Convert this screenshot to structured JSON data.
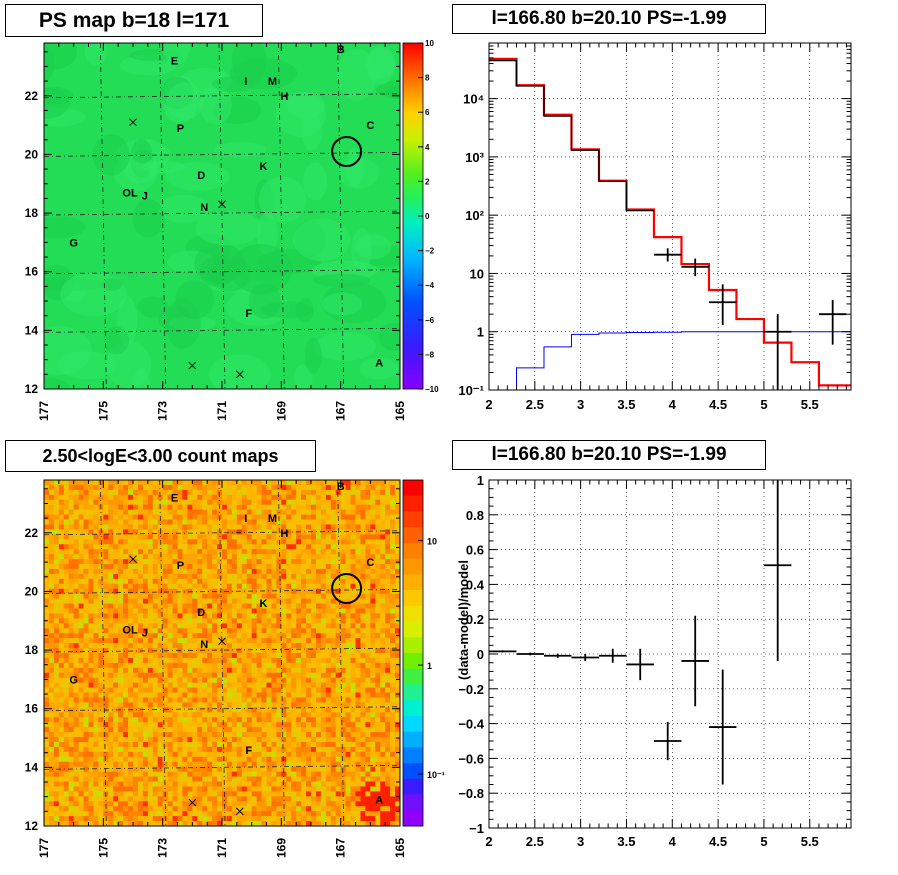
{
  "panels": {
    "ps_map_title": "PS map b=18 l=171",
    "spectrum_title": "l=166.80 b=20.10 PS=-1.99",
    "count_map_title": "2.50<logE<3.00 count maps",
    "residual_title": "l=166.80 b=20.10 PS=-1.99"
  },
  "chart_data": [
    {
      "id": "ps_map",
      "type": "heatmap",
      "title": "PS map b=18 l=171",
      "xlim": [
        177,
        165
      ],
      "ylim": [
        12,
        23.8
      ],
      "xticks": [
        "177",
        "175",
        "173",
        "171",
        "169",
        "167",
        "165"
      ],
      "yticks": [
        "12",
        "14",
        "16",
        "18",
        "20",
        "22"
      ],
      "colorbar": {
        "range": [
          -10,
          10
        ],
        "ticks": [
          "10",
          "8",
          "6",
          "4",
          "2",
          "0",
          "−2",
          "−4",
          "−6",
          "−8",
          "−10"
        ]
      },
      "grid": true,
      "background_level": 0,
      "source_labels": [
        {
          "name": "B",
          "l": 167.0,
          "b": 23.6
        },
        {
          "name": "E",
          "l": 172.6,
          "b": 23.2
        },
        {
          "name": "I",
          "l": 170.2,
          "b": 22.5
        },
        {
          "name": "M",
          "l": 169.3,
          "b": 22.5
        },
        {
          "name": "H",
          "l": 168.9,
          "b": 22.0
        },
        {
          "name": "C",
          "l": 166.0,
          "b": 21.0
        },
        {
          "name": "P",
          "l": 172.4,
          "b": 20.9
        },
        {
          "name": "K",
          "l": 169.6,
          "b": 19.6
        },
        {
          "name": "D",
          "l": 171.7,
          "b": 19.3
        },
        {
          "name": "OL",
          "l": 174.1,
          "b": 18.7
        },
        {
          "name": "J",
          "l": 173.6,
          "b": 18.6
        },
        {
          "name": "N",
          "l": 171.6,
          "b": 18.2
        },
        {
          "name": "G",
          "l": 176.0,
          "b": 17.0
        },
        {
          "name": "F",
          "l": 170.1,
          "b": 14.6
        },
        {
          "name": "A",
          "l": 165.7,
          "b": 12.9
        }
      ],
      "x_markers": [
        {
          "l": 174.0,
          "b": 21.1
        },
        {
          "l": 171.0,
          "b": 18.3
        },
        {
          "l": 172.0,
          "b": 12.8
        },
        {
          "l": 170.4,
          "b": 12.5
        }
      ],
      "circle": {
        "l": 166.8,
        "b": 20.1
      }
    },
    {
      "id": "spectrum",
      "type": "line",
      "title": "l=166.80 b=20.10 PS=-1.99",
      "xlim": [
        2.0,
        5.95
      ],
      "ylim": [
        0.1,
        90000
      ],
      "yscale": "log",
      "xticks": [
        "2",
        "2.5",
        "3",
        "3.5",
        "4",
        "4.5",
        "5",
        "5.5"
      ],
      "yticks": [
        "10⁻¹",
        "1",
        "10",
        "10²",
        "10³",
        "10⁴"
      ],
      "grid": true,
      "bin_edges": [
        2.0,
        2.3,
        2.6,
        2.9,
        3.2,
        3.5,
        3.8,
        4.1,
        4.4,
        4.7,
        5.0,
        5.3,
        5.6,
        5.95
      ],
      "series": [
        {
          "color": "#ff0000",
          "values": [
            48000,
            17000,
            5300,
            1350,
            390,
            125,
            42,
            14.5,
            5.2,
            1.65,
            0.65,
            0.3,
            0.12
          ]
        },
        {
          "color": "#000000",
          "values": [
            45000,
            16500,
            5000,
            1300,
            380,
            120
          ]
        },
        {
          "color": "#0000ff",
          "values": [
            0.1,
            0.24,
            0.55,
            0.9,
            0.95,
            0.97,
            0.98,
            1.0,
            1.0,
            1.0,
            1.0,
            1.0,
            1.0
          ]
        }
      ],
      "points": [
        {
          "x": 3.95,
          "y": 21,
          "xerr": 0.15,
          "ylo": 16,
          "yhi": 27
        },
        {
          "x": 4.25,
          "y": 13,
          "xerr": 0.15,
          "ylo": 9,
          "yhi": 18
        },
        {
          "x": 4.55,
          "y": 3.2,
          "xerr": 0.15,
          "ylo": 1.3,
          "yhi": 6.5
        },
        {
          "x": 5.15,
          "y": 1.0,
          "xerr": 0.15,
          "ylo": 0.1,
          "yhi": 2.0
        },
        {
          "x": 5.75,
          "y": 2.0,
          "xerr": 0.15,
          "ylo": 0.6,
          "yhi": 3.5
        }
      ]
    },
    {
      "id": "count_map",
      "type": "heatmap",
      "title": "2.50<logE<3.00 count maps",
      "xlim": [
        177,
        165
      ],
      "ylim": [
        12,
        23.8
      ],
      "xticks": [
        "177",
        "175",
        "173",
        "171",
        "169",
        "167",
        "165"
      ],
      "yticks": [
        "12",
        "14",
        "16",
        "18",
        "20",
        "22"
      ],
      "colorbar": {
        "scale": "log",
        "ticks": [
          "10",
          "1",
          "10⁻¹"
        ]
      },
      "grid": true,
      "source_labels": [
        {
          "name": "B",
          "l": 167.0,
          "b": 23.6
        },
        {
          "name": "E",
          "l": 172.6,
          "b": 23.2
        },
        {
          "name": "I",
          "l": 170.2,
          "b": 22.5
        },
        {
          "name": "M",
          "l": 169.3,
          "b": 22.5
        },
        {
          "name": "H",
          "l": 168.9,
          "b": 22.0
        },
        {
          "name": "C",
          "l": 166.0,
          "b": 21.0
        },
        {
          "name": "P",
          "l": 172.4,
          "b": 20.9
        },
        {
          "name": "K",
          "l": 169.6,
          "b": 19.6
        },
        {
          "name": "D",
          "l": 171.7,
          "b": 19.3
        },
        {
          "name": "OL",
          "l": 174.1,
          "b": 18.7
        },
        {
          "name": "J",
          "l": 173.6,
          "b": 18.6
        },
        {
          "name": "N",
          "l": 171.6,
          "b": 18.2
        },
        {
          "name": "G",
          "l": 176.0,
          "b": 17.0
        },
        {
          "name": "F",
          "l": 170.1,
          "b": 14.6
        },
        {
          "name": "A",
          "l": 165.7,
          "b": 12.9
        }
      ],
      "x_markers": [
        {
          "l": 174.0,
          "b": 21.1
        },
        {
          "l": 171.0,
          "b": 18.3
        },
        {
          "l": 172.0,
          "b": 12.8
        },
        {
          "l": 170.4,
          "b": 12.5
        }
      ],
      "circle": {
        "l": 166.8,
        "b": 20.1
      }
    },
    {
      "id": "residual",
      "type": "scatter",
      "title": "l=166.80 b=20.10 PS=-1.99",
      "ylabel": "(data-model)/model",
      "xlim": [
        2.0,
        5.95
      ],
      "ylim": [
        -1.0,
        1.0
      ],
      "xticks": [
        "2",
        "2.5",
        "3",
        "3.5",
        "4",
        "4.5",
        "5",
        "5.5"
      ],
      "yticks": [
        "−1",
        "−0.8",
        "−0.6",
        "−0.4",
        "−0.2",
        "0",
        "0.2",
        "0.4",
        "0.6",
        "0.8",
        "1"
      ],
      "grid": true,
      "points": [
        {
          "x": 2.15,
          "y": 0.015,
          "xerr": 0.15,
          "yerr": 0.006
        },
        {
          "x": 2.45,
          "y": 0.0,
          "xerr": 0.15,
          "yerr": 0.008
        },
        {
          "x": 2.75,
          "y": -0.01,
          "xerr": 0.15,
          "yerr": 0.012
        },
        {
          "x": 3.05,
          "y": -0.02,
          "xerr": 0.15,
          "yerr": 0.02
        },
        {
          "x": 3.35,
          "y": -0.01,
          "xerr": 0.15,
          "yerr": 0.04
        },
        {
          "x": 3.65,
          "y": -0.06,
          "xerr": 0.15,
          "yerr": 0.09
        },
        {
          "x": 3.95,
          "y": -0.5,
          "xerr": 0.15,
          "yerr": 0.11
        },
        {
          "x": 4.25,
          "y": -0.04,
          "xerr": 0.15,
          "yerr": 0.26
        },
        {
          "x": 4.55,
          "y": -0.42,
          "xerr": 0.15,
          "yerr": 0.33
        },
        {
          "x": 5.15,
          "y": 0.51,
          "xerr": 0.15,
          "yerr": 0.55
        }
      ]
    }
  ],
  "colors": {
    "ps_background": "#22dd55",
    "axis": "#000000",
    "spectrum_model": "#ff0000",
    "spectrum_background": "#0000ff"
  }
}
